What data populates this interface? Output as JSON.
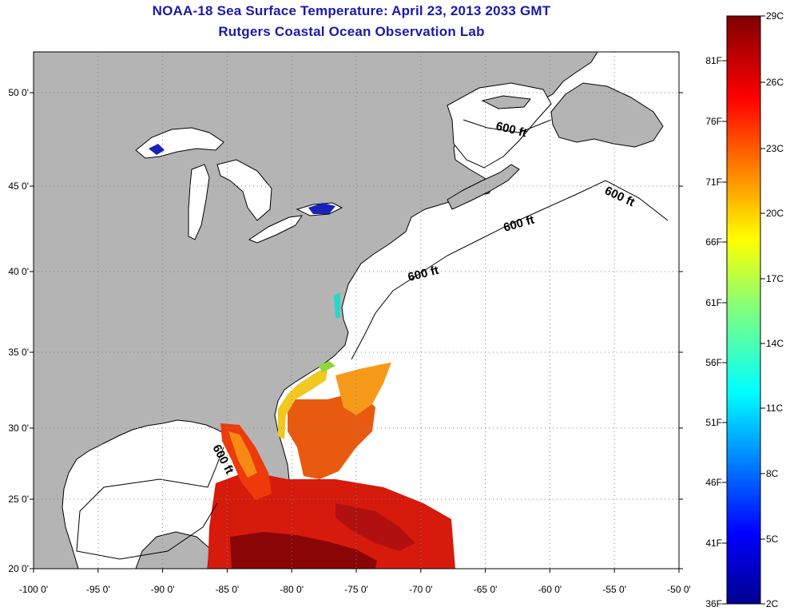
{
  "header": {
    "title": "NOAA-18 Sea Surface Temperature:  April 23, 2013 2033 GMT",
    "subtitle": "Rutgers Coastal Ocean Observation Lab"
  },
  "map": {
    "lon_ticks": [
      "-100 0'",
      "-95 0'",
      "-90 0'",
      "-85 0'",
      "-80 0'",
      "-75 0'",
      "-70 0'",
      "-65 0'",
      "-60 0'",
      "-55 0'",
      "-50 0'"
    ],
    "lat_ticks": [
      "20 0'",
      "25 0'",
      "30 0'",
      "35 0'",
      "40 0'",
      "45 0'",
      "50 0'"
    ],
    "contour_labels": [
      "600 ft",
      "600 ft",
      "600 ft",
      "600 ft",
      "600 ft"
    ],
    "land_color": "#b4b4b4",
    "water_color": "#ffffff"
  },
  "colorbar": {
    "fahrenheit": [
      "81F",
      "76F",
      "71F",
      "66F",
      "61F",
      "56F",
      "51F",
      "46F",
      "41F",
      "36F"
    ],
    "celsius": [
      "29C",
      "26C",
      "23C",
      "20C",
      "17C",
      "14C",
      "11C",
      "8C",
      "5C",
      "2C"
    ]
  }
}
